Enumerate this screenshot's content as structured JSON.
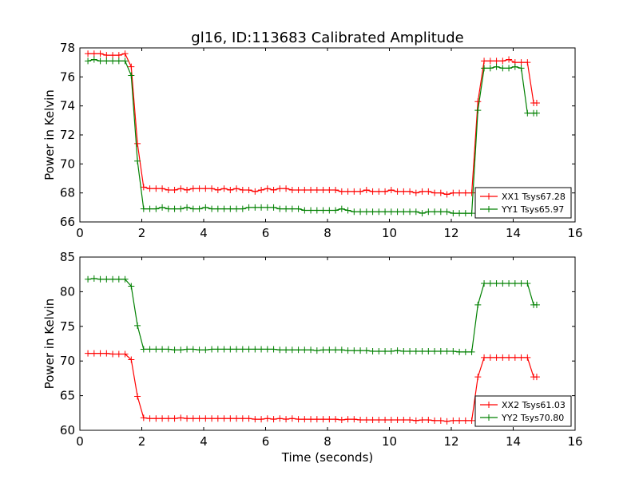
{
  "figure_title": "gl16, ID:113683 Calibrated Amplitude",
  "colors": {
    "red": "#ff0000",
    "green": "#008000",
    "axes": "#000000",
    "background": "#ffffff"
  },
  "chart_data": [
    {
      "type": "line",
      "title": "gl16, ID:113683 Calibrated Amplitude",
      "xlabel": "",
      "ylabel": "Power in Kelvin",
      "xlim": [
        0,
        16
      ],
      "ylim": [
        66,
        78
      ],
      "xticks": [
        0,
        2,
        4,
        6,
        8,
        10,
        12,
        14,
        16
      ],
      "yticks": [
        66,
        68,
        70,
        72,
        74,
        76,
        78
      ],
      "grid": false,
      "legend": {
        "position": "lower-right",
        "font_size": "small"
      },
      "x": [
        0.26,
        0.46,
        0.66,
        0.86,
        1.06,
        1.26,
        1.46,
        1.66,
        1.86,
        2.06,
        2.26,
        2.46,
        2.66,
        2.86,
        3.06,
        3.26,
        3.46,
        3.66,
        3.86,
        4.06,
        4.26,
        4.46,
        4.66,
        4.86,
        5.06,
        5.26,
        5.46,
        5.66,
        5.86,
        6.06,
        6.26,
        6.46,
        6.66,
        6.86,
        7.06,
        7.26,
        7.46,
        7.66,
        7.86,
        8.06,
        8.26,
        8.46,
        8.66,
        8.86,
        9.06,
        9.26,
        9.46,
        9.66,
        9.86,
        10.06,
        10.26,
        10.46,
        10.66,
        10.86,
        11.06,
        11.26,
        11.46,
        11.66,
        11.86,
        12.06,
        12.26,
        12.46,
        12.66,
        12.86,
        13.06,
        13.26,
        13.46,
        13.66,
        13.86,
        14.06,
        14.26,
        14.46,
        14.66,
        14.76
      ],
      "series": [
        {
          "name": "XX1 Tsys67.28",
          "color": "#ff0000",
          "values": [
            77.6,
            77.6,
            77.6,
            77.5,
            77.5,
            77.5,
            77.6,
            76.7,
            71.4,
            68.4,
            68.3,
            68.3,
            68.3,
            68.2,
            68.2,
            68.3,
            68.2,
            68.3,
            68.3,
            68.3,
            68.3,
            68.2,
            68.3,
            68.2,
            68.3,
            68.2,
            68.2,
            68.1,
            68.2,
            68.3,
            68.2,
            68.3,
            68.3,
            68.2,
            68.2,
            68.2,
            68.2,
            68.2,
            68.2,
            68.2,
            68.2,
            68.1,
            68.1,
            68.1,
            68.1,
            68.2,
            68.1,
            68.1,
            68.1,
            68.2,
            68.1,
            68.1,
            68.1,
            68.0,
            68.1,
            68.1,
            68.0,
            68.0,
            67.9,
            68.0,
            68.0,
            68.0,
            68.0,
            74.3,
            77.1,
            77.1,
            77.1,
            77.1,
            77.2,
            77.0,
            77.0,
            77.0,
            74.2,
            74.2
          ]
        },
        {
          "name": "YY1 Tsys65.97",
          "color": "#008000",
          "values": [
            77.1,
            77.2,
            77.1,
            77.1,
            77.1,
            77.1,
            77.1,
            76.1,
            70.2,
            66.9,
            66.9,
            66.9,
            67.0,
            66.9,
            66.9,
            66.9,
            67.0,
            66.9,
            66.9,
            67.0,
            66.9,
            66.9,
            66.9,
            66.9,
            66.9,
            66.9,
            67.0,
            67.0,
            67.0,
            67.0,
            67.0,
            66.9,
            66.9,
            66.9,
            66.9,
            66.8,
            66.8,
            66.8,
            66.8,
            66.8,
            66.8,
            66.9,
            66.8,
            66.7,
            66.7,
            66.7,
            66.7,
            66.7,
            66.7,
            66.7,
            66.7,
            66.7,
            66.7,
            66.7,
            66.6,
            66.7,
            66.7,
            66.7,
            66.7,
            66.6,
            66.6,
            66.6,
            66.6,
            73.7,
            76.6,
            76.6,
            76.7,
            76.6,
            76.6,
            76.7,
            76.6,
            73.5,
            73.5,
            73.5
          ]
        }
      ]
    },
    {
      "type": "line",
      "title": "",
      "xlabel": "Time (seconds)",
      "ylabel": "Power in Kelvin",
      "xlim": [
        0,
        16
      ],
      "ylim": [
        60,
        85
      ],
      "xticks": [
        0,
        2,
        4,
        6,
        8,
        10,
        12,
        14,
        16
      ],
      "yticks": [
        60,
        65,
        70,
        75,
        80,
        85
      ],
      "grid": false,
      "legend": {
        "position": "lower-right",
        "font_size": "small"
      },
      "x": [
        0.26,
        0.46,
        0.66,
        0.86,
        1.06,
        1.26,
        1.46,
        1.66,
        1.86,
        2.06,
        2.26,
        2.46,
        2.66,
        2.86,
        3.06,
        3.26,
        3.46,
        3.66,
        3.86,
        4.06,
        4.26,
        4.46,
        4.66,
        4.86,
        5.06,
        5.26,
        5.46,
        5.66,
        5.86,
        6.06,
        6.26,
        6.46,
        6.66,
        6.86,
        7.06,
        7.26,
        7.46,
        7.66,
        7.86,
        8.06,
        8.26,
        8.46,
        8.66,
        8.86,
        9.06,
        9.26,
        9.46,
        9.66,
        9.86,
        10.06,
        10.26,
        10.46,
        10.66,
        10.86,
        11.06,
        11.26,
        11.46,
        11.66,
        11.86,
        12.06,
        12.26,
        12.46,
        12.66,
        12.86,
        13.06,
        13.26,
        13.46,
        13.66,
        13.86,
        14.06,
        14.26,
        14.46,
        14.66,
        14.76
      ],
      "series": [
        {
          "name": "XX2 Tsys61.03",
          "color": "#ff0000",
          "values": [
            71.1,
            71.1,
            71.1,
            71.1,
            71.0,
            71.0,
            71.0,
            70.2,
            64.9,
            61.8,
            61.7,
            61.7,
            61.7,
            61.7,
            61.7,
            61.8,
            61.7,
            61.7,
            61.7,
            61.7,
            61.7,
            61.7,
            61.7,
            61.7,
            61.7,
            61.7,
            61.7,
            61.6,
            61.6,
            61.7,
            61.6,
            61.7,
            61.6,
            61.7,
            61.6,
            61.6,
            61.6,
            61.6,
            61.6,
            61.6,
            61.6,
            61.5,
            61.6,
            61.6,
            61.5,
            61.5,
            61.5,
            61.5,
            61.5,
            61.5,
            61.5,
            61.5,
            61.5,
            61.4,
            61.5,
            61.5,
            61.4,
            61.4,
            61.3,
            61.4,
            61.4,
            61.4,
            61.4,
            67.7,
            70.5,
            70.5,
            70.5,
            70.5,
            70.5,
            70.5,
            70.5,
            70.5,
            67.7,
            67.7
          ]
        },
        {
          "name": "YY2 Tsys70.80",
          "color": "#008000",
          "values": [
            81.8,
            81.9,
            81.8,
            81.8,
            81.8,
            81.8,
            81.8,
            80.8,
            75.1,
            71.7,
            71.7,
            71.7,
            71.7,
            71.7,
            71.6,
            71.6,
            71.7,
            71.7,
            71.6,
            71.6,
            71.7,
            71.7,
            71.7,
            71.7,
            71.7,
            71.7,
            71.7,
            71.7,
            71.7,
            71.7,
            71.7,
            71.6,
            71.6,
            71.6,
            71.6,
            71.6,
            71.6,
            71.5,
            71.6,
            71.6,
            71.6,
            71.6,
            71.5,
            71.5,
            71.5,
            71.5,
            71.4,
            71.4,
            71.4,
            71.4,
            71.5,
            71.4,
            71.4,
            71.4,
            71.4,
            71.4,
            71.4,
            71.4,
            71.4,
            71.4,
            71.3,
            71.3,
            71.3,
            78.1,
            81.2,
            81.2,
            81.2,
            81.2,
            81.2,
            81.2,
            81.2,
            81.2,
            78.1,
            78.1
          ]
        }
      ]
    }
  ]
}
